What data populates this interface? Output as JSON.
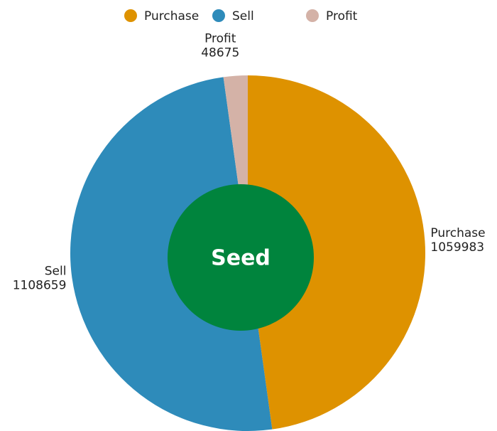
{
  "chart_data": {
    "type": "donut",
    "categories": [
      "Purchase",
      "Sell",
      "Profit"
    ],
    "values": [
      1059983,
      1108659,
      48675
    ],
    "colors": [
      "#de9200",
      "#2e8bba",
      "#d4b2a7"
    ],
    "center_label": "Seed",
    "center_color": "#00843d",
    "legend": "top"
  }
}
